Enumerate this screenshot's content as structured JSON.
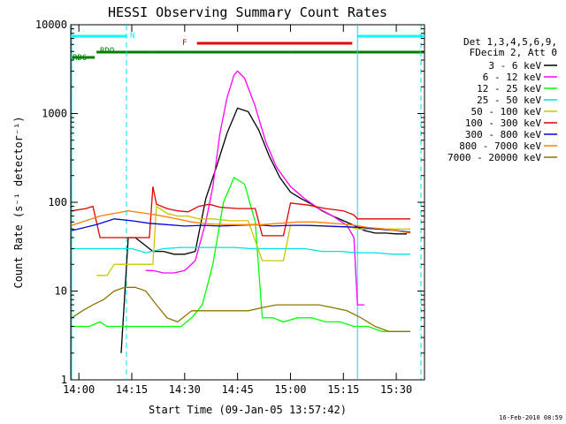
{
  "chart_data": {
    "type": "line",
    "title": "HESSI Observing Summary Count Rates",
    "xlabel": "Start Time (09-Jan-05 13:57:42)",
    "ylabel": "Count Rate (s⁻¹ detector⁻¹)",
    "ylog": true,
    "ylim": [
      1,
      10000
    ],
    "xlim": [
      "13:57:42",
      "15:38:00"
    ],
    "grid": false,
    "legend_position": "right",
    "x_ticks": [
      "14:00",
      "14:15",
      "14:30",
      "14:45",
      "15:00",
      "15:15",
      "15:30"
    ],
    "y_ticks": [
      "1",
      "10",
      "100",
      "1000",
      "10000"
    ],
    "legend_header": [
      "Det 1,3,4,5,6,9,",
      "FDecim 2, Att 0"
    ],
    "footer_date": "16-Feb-2010 08:59",
    "flags": [
      {
        "label": "N",
        "color": "#00ffff",
        "segments": [
          [
            "13:57:42",
            "14:13:30"
          ],
          [
            "15:19:00",
            "15:38:00"
          ]
        ]
      },
      {
        "label": "F",
        "color": "#e00000",
        "segments": [
          [
            "14:33:30",
            "15:17:30"
          ]
        ]
      },
      {
        "label": "RDO",
        "color": "#007f00",
        "segments": [
          [
            "14:05:00",
            "14:21:00"
          ],
          [
            "14:21:00",
            "14:52:30"
          ],
          [
            "14:52:30",
            "15:00:00"
          ],
          [
            "15:00:00",
            "15:38:00"
          ]
        ]
      },
      {
        "label": "RD6",
        "color": "#007f00",
        "segments": [
          [
            "13:57:42",
            "14:04:30"
          ]
        ]
      }
    ],
    "series": [
      {
        "name": "3 - 6 keV",
        "color": "#000000",
        "x": [
          "14:12",
          "14:14",
          "14:16",
          "14:21",
          "14:24",
          "14:27",
          "14:30",
          "14:33",
          "14:36",
          "14:39",
          "14:42",
          "14:45",
          "14:48",
          "14:51",
          "14:54",
          "14:57",
          "15:00",
          "15:03",
          "15:06",
          "15:09",
          "15:12",
          "15:15",
          "15:18",
          "15:21",
          "15:24",
          "15:27",
          "15:30",
          "15:33"
        ],
        "y": [
          2,
          40,
          40,
          28,
          28,
          26,
          26,
          28,
          110,
          250,
          600,
          1150,
          1050,
          650,
          330,
          190,
          130,
          110,
          95,
          80,
          70,
          62,
          55,
          48,
          45,
          45,
          44,
          44
        ]
      },
      {
        "name": "6 - 12 keV",
        "color": "#ff00ff",
        "x": [
          "14:19",
          "14:21",
          "14:24",
          "14:27",
          "14:30",
          "14:33",
          "14:36",
          "14:38",
          "14:40",
          "14:42",
          "14:44",
          "14:45",
          "14:47",
          "14:50",
          "14:53",
          "14:56",
          "15:00",
          "15:04",
          "15:08",
          "15:12",
          "15:16",
          "15:18",
          "15:19",
          "15:21"
        ],
        "y": [
          17,
          17,
          16,
          16,
          17,
          22,
          60,
          150,
          600,
          1500,
          2700,
          3000,
          2500,
          1200,
          480,
          250,
          150,
          110,
          85,
          70,
          55,
          40,
          7,
          7
        ]
      },
      {
        "name": "12 - 25 keV",
        "color": "#00ff00",
        "x": [
          "13:58",
          "14:03",
          "14:06",
          "14:08",
          "14:10",
          "14:12",
          "14:14",
          "14:17",
          "14:20",
          "14:23",
          "14:26",
          "14:29",
          "14:32",
          "14:35",
          "14:38",
          "14:41",
          "14:44",
          "14:47",
          "14:50",
          "14:52",
          "14:55",
          "14:58",
          "15:02",
          "15:06",
          "15:10",
          "15:14",
          "15:18",
          "15:22",
          "15:26",
          "15:30",
          "15:34"
        ],
        "y": [
          4,
          4,
          4.5,
          4,
          4,
          4,
          4,
          4,
          4,
          4,
          4,
          4,
          5,
          7,
          20,
          100,
          190,
          160,
          60,
          5,
          5,
          4.5,
          5,
          5,
          4.5,
          4.5,
          4,
          4,
          3.5,
          3.5,
          3.5
        ]
      },
      {
        "name": "25 - 50 keV",
        "color": "#00e0e0",
        "x": [
          "13:58",
          "14:04",
          "14:09",
          "14:12",
          "14:15",
          "14:19",
          "14:24",
          "14:29",
          "14:34",
          "14:39",
          "14:44",
          "14:49",
          "14:54",
          "14:59",
          "15:04",
          "15:09",
          "15:14",
          "15:19",
          "15:24",
          "15:29",
          "15:34"
        ],
        "y": [
          30,
          30,
          30,
          30,
          30,
          27,
          30,
          31,
          31,
          31,
          31,
          30,
          30,
          30,
          30,
          28,
          28,
          27,
          27,
          26,
          26
        ]
      },
      {
        "name": "50 - 100 keV",
        "color": "#c8c800",
        "x": [
          "14:05",
          "14:08",
          "14:10",
          "14:13",
          "14:16",
          "14:19",
          "14:21",
          "14:22",
          "14:25",
          "14:28",
          "14:31",
          "14:34",
          "14:38",
          "14:43",
          "14:48",
          "14:52",
          "14:55",
          "14:58",
          "15:00",
          "15:03",
          "15:08",
          "15:13",
          "15:17",
          "15:19",
          "15:22",
          "15:27",
          "15:34"
        ],
        "y": [
          15,
          15,
          20,
          20,
          20,
          20,
          20,
          90,
          75,
          70,
          70,
          65,
          65,
          62,
          62,
          22,
          22,
          22,
          55,
          55,
          54,
          53,
          53,
          50,
          50,
          50,
          50
        ]
      },
      {
        "name": "100 - 300 keV",
        "color": "#e00000",
        "x": [
          "13:58",
          "14:02",
          "14:04",
          "14:06",
          "14:09",
          "14:12",
          "14:15",
          "14:18",
          "14:20",
          "14:21",
          "14:22",
          "14:25",
          "14:28",
          "14:31",
          "14:34",
          "14:37",
          "14:40",
          "14:45",
          "14:50",
          "14:52",
          "14:55",
          "14:58",
          "15:00",
          "15:05",
          "15:10",
          "15:15",
          "15:18",
          "15:19",
          "15:22",
          "15:27",
          "15:34"
        ],
        "y": [
          80,
          85,
          90,
          40,
          40,
          40,
          40,
          40,
          40,
          150,
          95,
          85,
          80,
          78,
          90,
          95,
          88,
          85,
          85,
          42,
          42,
          42,
          98,
          93,
          85,
          80,
          72,
          65,
          65,
          65,
          65
        ]
      },
      {
        "name": "300 - 800 keV",
        "color": "#0000e0",
        "x": [
          "13:58",
          "14:05",
          "14:10",
          "14:15",
          "14:20",
          "14:25",
          "14:30",
          "14:35",
          "14:40",
          "14:45",
          "14:50",
          "14:55",
          "15:00",
          "15:05",
          "15:10",
          "15:15",
          "15:20",
          "15:25",
          "15:30",
          "15:34"
        ],
        "y": [
          48,
          56,
          65,
          62,
          58,
          56,
          54,
          55,
          54,
          55,
          56,
          54,
          55,
          55,
          54,
          53,
          52,
          50,
          48,
          46
        ]
      },
      {
        "name": "800 - 7000 keV",
        "color": "#ff8000",
        "x": [
          "13:58",
          "14:02",
          "14:06",
          "14:10",
          "14:14",
          "14:18",
          "14:22",
          "14:27",
          "14:32",
          "14:37",
          "14:42",
          "14:47",
          "14:52",
          "14:57",
          "15:02",
          "15:07",
          "15:12",
          "15:17",
          "15:22",
          "15:27",
          "15:34"
        ],
        "y": [
          55,
          62,
          70,
          75,
          80,
          76,
          72,
          66,
          60,
          57,
          56,
          56,
          56,
          58,
          60,
          60,
          58,
          56,
          52,
          50,
          45
        ]
      },
      {
        "name": "7000 - 20000 keV",
        "color": "#8b7500",
        "x": [
          "13:58",
          "14:01",
          "14:04",
          "14:07",
          "14:10",
          "14:13",
          "14:16",
          "14:19",
          "14:22",
          "14:25",
          "14:28",
          "14:32",
          "14:36",
          "14:40",
          "14:44",
          "14:48",
          "14:52",
          "14:56",
          "15:00",
          "15:04",
          "15:08",
          "15:12",
          "15:16",
          "15:20",
          "15:24",
          "15:28",
          "15:34"
        ],
        "y": [
          5,
          6,
          7,
          8,
          10,
          11,
          11,
          10,
          7,
          5,
          4.5,
          6,
          6,
          6,
          6,
          6,
          6.5,
          7,
          7,
          7,
          7,
          6.5,
          6,
          5,
          4,
          3.5,
          3.5
        ]
      }
    ]
  }
}
